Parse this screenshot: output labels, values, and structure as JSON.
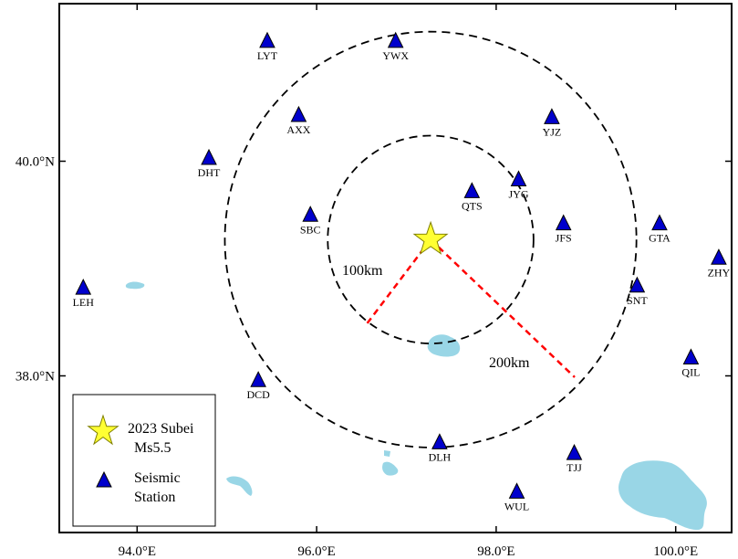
{
  "map": {
    "x_ticks": [
      {
        "value": 94.0,
        "label": "94.0°E"
      },
      {
        "value": 96.0,
        "label": "96.0°E"
      },
      {
        "value": 98.0,
        "label": "98.0°E"
      },
      {
        "value": 100.0,
        "label": "100.0°E"
      }
    ],
    "y_ticks": [
      {
        "value": 40.0,
        "label": "40.0°N"
      },
      {
        "value": 38.0,
        "label": "38.0°N"
      }
    ],
    "colors": {
      "station": "#0000cc",
      "epicenter": "#ffff33",
      "water": "#99d6e6",
      "ring": "#000000",
      "distance_line": "#ff0000"
    }
  },
  "epicenter": {
    "name": "2023 Subei Ms5.5",
    "lon": 97.27,
    "lat": 39.27
  },
  "rings": [
    {
      "label": "100km",
      "radius_km": 100
    },
    {
      "label": "200km",
      "radius_km": 200
    }
  ],
  "stations": [
    {
      "code": "LYT",
      "lon": 95.45,
      "lat": 41.12
    },
    {
      "code": "YWX",
      "lon": 96.88,
      "lat": 41.12
    },
    {
      "code": "AXX",
      "lon": 95.8,
      "lat": 40.43
    },
    {
      "code": "YJZ",
      "lon": 98.62,
      "lat": 40.41
    },
    {
      "code": "DHT",
      "lon": 94.8,
      "lat": 40.03
    },
    {
      "code": "JYG",
      "lon": 98.25,
      "lat": 39.83
    },
    {
      "code": "QTS",
      "lon": 97.73,
      "lat": 39.72
    },
    {
      "code": "SBC",
      "lon": 95.93,
      "lat": 39.5
    },
    {
      "code": "JFS",
      "lon": 98.75,
      "lat": 39.42
    },
    {
      "code": "GTA",
      "lon": 99.82,
      "lat": 39.42
    },
    {
      "code": "ZHY",
      "lon": 100.48,
      "lat": 39.1
    },
    {
      "code": "LEH",
      "lon": 93.4,
      "lat": 38.82
    },
    {
      "code": "SNT",
      "lon": 99.57,
      "lat": 38.84
    },
    {
      "code": "QIL",
      "lon": 100.17,
      "lat": 38.17
    },
    {
      "code": "DCD",
      "lon": 95.35,
      "lat": 37.96
    },
    {
      "code": "DLH",
      "lon": 97.37,
      "lat": 37.38
    },
    {
      "code": "TJJ",
      "lon": 98.87,
      "lat": 37.28
    },
    {
      "code": "WUL",
      "lon": 98.23,
      "lat": 36.92
    }
  ],
  "legend": {
    "epicenter_line1": "2023 Subei",
    "epicenter_line2": "Ms5.5",
    "station_line1": "Seismic",
    "station_line2": "Station"
  }
}
